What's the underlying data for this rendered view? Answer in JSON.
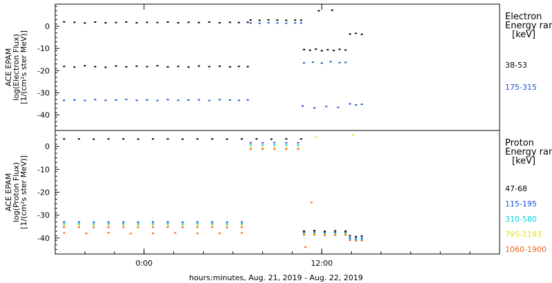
{
  "chart_data": [
    {
      "type": "scatter",
      "panel": "electron",
      "ylabel_lines": [
        "ACE EPAM",
        "log(Electron Flux)",
        "[1/(cm²s ster MeV)]"
      ],
      "yticks": [
        0,
        -10,
        -20,
        -30,
        -40
      ],
      "ylim": [
        -47,
        10
      ],
      "legend_title": [
        "Electron",
        "Energy ran",
        "[keV]"
      ],
      "series": [
        {
          "name": "38-53",
          "color": "#000000",
          "segments": [
            {
              "x": [
                -5.4,
                -4.7,
                -4.0,
                -3.3,
                -2.6,
                -1.9,
                -1.2,
                -0.5,
                0.2,
                0.9,
                1.6,
                2.3,
                3.0,
                3.7,
                4.4,
                5.1,
                5.8,
                6.4,
                7.0
              ],
              "y": [
                2.0,
                1.8,
                1.5,
                1.9,
                1.6,
                1.7,
                1.9,
                1.6,
                1.8,
                1.7,
                1.9,
                1.6,
                1.8,
                1.7,
                1.9,
                1.6,
                1.8,
                1.7,
                1.8
              ]
            },
            {
              "x": [
                -5.4,
                -4.7,
                -4.0,
                -3.3,
                -2.6,
                -1.9,
                -1.2,
                -0.5,
                0.2,
                0.9,
                1.6,
                2.3,
                3.0,
                3.7,
                4.4,
                5.1,
                5.8,
                6.4,
                7.0
              ],
              "y": [
                -18.1,
                -18.4,
                -17.8,
                -18.2,
                -18.5,
                -17.9,
                -18.3,
                -18.0,
                -18.2,
                -17.8,
                -18.3,
                -18.1,
                -18.4,
                -17.9,
                -18.2,
                -18.0,
                -18.3,
                -18.1,
                -18.2
              ]
            },
            {
              "x": [
                7.2,
                7.8,
                8.4,
                9.0,
                9.6,
                10.2,
                10.6
              ],
              "y": [
                2.8,
                2.7,
                2.9,
                2.8,
                2.7,
                2.8,
                2.8
              ]
            },
            {
              "x": [
                10.8,
                11.2,
                11.6,
                12.0,
                12.4,
                12.8,
                13.2,
                13.6
              ],
              "y": [
                -10.5,
                -10.8,
                -10.3,
                -11.0,
                -10.6,
                -10.9,
                -10.4,
                -10.7
              ]
            },
            {
              "x": [
                11.8,
                12.7
              ],
              "y": [
                7.0,
                7.3
              ]
            },
            {
              "x": [
                13.9,
                14.3,
                14.7
              ],
              "y": [
                -3.5,
                -3.2,
                -3.6
              ]
            }
          ]
        },
        {
          "name": "175-315",
          "color": "#1a4fd0",
          "segments": [
            {
              "x": [
                -5.4,
                -4.7,
                -4.0,
                -3.3,
                -2.6,
                -1.9,
                -1.2,
                -0.5,
                0.2,
                0.9,
                1.6,
                2.3,
                3.0,
                3.7,
                4.4,
                5.1,
                5.8,
                6.4,
                7.0
              ],
              "y": [
                -33.4,
                -33.2,
                -33.5,
                -33.1,
                -33.4,
                -33.3,
                -33.0,
                -33.4,
                -33.2,
                -33.5,
                -33.1,
                -33.4,
                -33.3,
                -33.2,
                -33.5,
                -33.1,
                -33.3,
                -33.4,
                -33.2
              ]
            },
            {
              "x": [
                7.2,
                7.8,
                8.4,
                9.0,
                9.6,
                10.2,
                10.6
              ],
              "y": [
                1.5,
                1.4,
                1.6,
                1.5,
                1.4,
                1.5,
                1.5
              ]
            },
            {
              "x": [
                10.8,
                11.4,
                12.0,
                12.6,
                13.2,
                13.6
              ],
              "y": [
                -16.5,
                -16.2,
                -16.6,
                -16.0,
                -16.4,
                -16.3
              ]
            },
            {
              "x": [
                10.7,
                11.5,
                12.3,
                13.1
              ],
              "y": [
                -36.0,
                -36.8,
                -36.2,
                -36.6
              ]
            },
            {
              "x": [
                13.9,
                14.3,
                14.7
              ],
              "y": [
                -35.0,
                -35.5,
                -35.2
              ]
            }
          ]
        }
      ]
    },
    {
      "type": "scatter",
      "panel": "proton",
      "ylabel_lines": [
        "ACE EPAM",
        "log(Proton Flux)",
        "[1/(cm²s ster MeV)]"
      ],
      "yticks": [
        0,
        -10,
        -20,
        -30,
        -40
      ],
      "ylim": [
        -47,
        7
      ],
      "legend_title": [
        "Proton",
        "Energy ran",
        "[keV]"
      ],
      "series": [
        {
          "name": "47-68",
          "color": "#000000",
          "segments": [
            {
              "x": [
                -5.4,
                -4.4,
                -3.4,
                -2.4,
                -1.4,
                -0.4,
                0.6,
                1.6,
                2.6,
                3.6,
                4.6,
                5.6,
                6.6,
                7.6,
                8.6,
                9.6,
                10.6
              ],
              "y": [
                3.3,
                3.3,
                3.2,
                3.3,
                3.3,
                3.2,
                3.3,
                3.3,
                3.2,
                3.3,
                3.3,
                3.2,
                3.3,
                3.3,
                3.2,
                3.3,
                3.3
              ]
            },
            {
              "x": [
                10.8,
                11.5,
                12.2,
                12.9,
                13.6
              ],
              "y": [
                -37.0,
                -36.8,
                -37.1,
                -36.9,
                -37.0
              ]
            },
            {
              "x": [
                13.9,
                14.3,
                14.7
              ],
              "y": [
                -39.0,
                -39.4,
                -39.2
              ]
            }
          ]
        },
        {
          "name": "115-195",
          "color": "#1a4fd0",
          "segments": [
            {
              "x": [
                -5.4,
                -4.4,
                -3.4,
                -2.4,
                -1.4,
                -0.4,
                0.6,
                1.6,
                2.6,
                3.6,
                4.6,
                5.6,
                6.6
              ],
              "y": [
                -33.0,
                -33.0,
                -33.1,
                -33.0,
                -33.0,
                -33.1,
                -33.0,
                -33.0,
                -33.1,
                -33.0,
                -33.0,
                -33.1,
                -33.0
              ]
            },
            {
              "x": [
                7.2,
                8.0,
                8.8,
                9.6,
                10.4
              ],
              "y": [
                1.6,
                1.6,
                1.7,
                1.6,
                1.6
              ]
            },
            {
              "x": [
                10.8,
                11.5,
                12.2,
                12.9,
                13.6
              ],
              "y": [
                -37.6,
                -37.5,
                -37.7,
                -37.6,
                -37.6
              ]
            },
            {
              "x": [
                13.9,
                14.3,
                14.7
              ],
              "y": [
                -40.0,
                -40.2,
                -40.1
              ]
            }
          ]
        },
        {
          "name": "310-580",
          "color": "#00d0e0",
          "segments": [
            {
              "x": [
                -5.4,
                -4.4,
                -3.4,
                -2.4,
                -1.4,
                -0.4,
                0.6,
                1.6,
                2.6,
                3.6,
                4.6,
                5.6,
                6.6
              ],
              "y": [
                -33.8,
                -33.8,
                -33.9,
                -33.8,
                -33.8,
                -33.9,
                -33.8,
                -33.8,
                -33.9,
                -33.8,
                -33.8,
                -33.9,
                -33.8
              ]
            },
            {
              "x": [
                7.2,
                8.0,
                8.8,
                9.6,
                10.4
              ],
              "y": [
                0.6,
                0.6,
                0.7,
                0.6,
                0.6
              ]
            },
            {
              "x": [
                10.8,
                11.5,
                12.2,
                12.9,
                13.6
              ],
              "y": [
                -38.0,
                -37.9,
                -38.1,
                -38.0,
                -38.0
              ]
            },
            {
              "x": [
                13.9,
                14.3,
                14.7
              ],
              "y": [
                -40.5,
                -40.7,
                -40.6
              ]
            }
          ]
        },
        {
          "name": "795-1193",
          "color": "#e8e020",
          "segments": [
            {
              "x": [
                -5.4,
                -4.4,
                -3.4,
                -2.4,
                -1.4,
                -0.4,
                0.6,
                1.6,
                2.6,
                3.6,
                4.6,
                5.6,
                6.6
              ],
              "y": [
                -34.5,
                -34.5,
                -34.6,
                -34.5,
                -34.5,
                -34.6,
                -34.5,
                -34.5,
                -34.6,
                -34.5,
                -34.5,
                -34.6,
                -34.5
              ]
            },
            {
              "x": [
                7.2,
                8.0,
                8.8,
                9.6,
                10.4
              ],
              "y": [
                -0.4,
                -0.4,
                -0.3,
                -0.4,
                -0.4
              ]
            },
            {
              "x": [
                10.8,
                11.5,
                12.2,
                12.9,
                13.6
              ],
              "y": [
                -38.3,
                -38.2,
                -38.4,
                -38.3,
                -38.3
              ]
            },
            {
              "x": [
                11.6,
                14.1
              ],
              "y": [
                4.0,
                5.0
              ]
            }
          ]
        },
        {
          "name": "1060-1900",
          "color": "#f06010",
          "segments": [
            {
              "x": [
                -5.4,
                -4.4,
                -3.4,
                -2.4,
                -1.4,
                -0.4,
                0.6,
                1.6,
                2.6,
                3.6,
                4.6,
                5.6,
                6.6
              ],
              "y": [
                -35.3,
                -35.3,
                -35.4,
                -35.3,
                -35.3,
                -35.4,
                -35.3,
                -35.3,
                -35.4,
                -35.3,
                -35.3,
                -35.4,
                -35.3
              ]
            },
            {
              "x": [
                -5.4,
                -3.9,
                -2.4,
                -0.9,
                0.6,
                2.1,
                3.6,
                5.1,
                6.6
              ],
              "y": [
                -37.8,
                -38.0,
                -37.7,
                -38.1,
                -37.9,
                -37.8,
                -38.0,
                -37.9,
                -37.8
              ]
            },
            {
              "x": [
                7.2,
                8.0,
                8.8,
                9.6,
                10.4
              ],
              "y": [
                -1.2,
                -1.2,
                -1.1,
                -1.2,
                -1.2
              ]
            },
            {
              "x": [
                10.8,
                11.5,
                12.2,
                12.9,
                13.6
              ],
              "y": [
                -38.7,
                -38.6,
                -38.8,
                -38.7,
                -38.7
              ]
            },
            {
              "x": [
                13.9,
                14.3,
                14.7
              ],
              "y": [
                -41.0,
                -41.2,
                -41.1
              ]
            },
            {
              "x": [
                10.9,
                11.3
              ],
              "y": [
                -44.0,
                -24.5
              ]
            }
          ]
        }
      ]
    }
  ],
  "xaxis": {
    "range_hours": [
      -6,
      24
    ],
    "ticks": [
      {
        "h": 0,
        "label": "0:00"
      },
      {
        "h": 12,
        "label": "12:00"
      }
    ],
    "label": "hours:minutes, Aug. 21, 2019 - Aug. 22, 2019"
  }
}
